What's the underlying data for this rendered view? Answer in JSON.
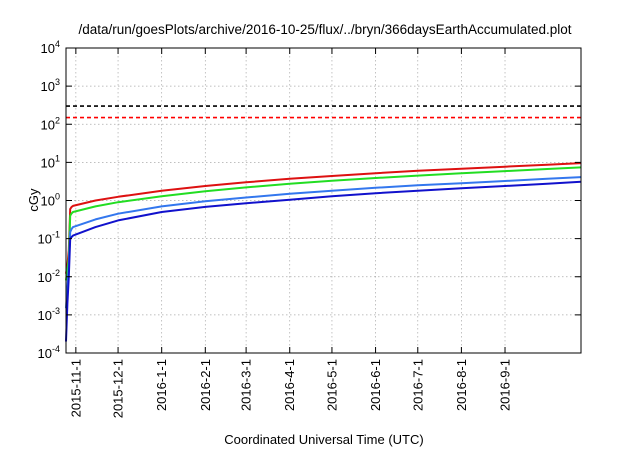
{
  "chart_data": {
    "type": "line",
    "title": "/data/run/goesPlots/archive/2016-10-25/flux/../bryn/366daysEarthAccumulated.plot",
    "xlabel": "Coordinated Universal Time (UTC)",
    "ylabel": "cGy",
    "yscale": "log",
    "ylim": [
      0.0001,
      10000
    ],
    "y_ticks": [
      {
        "value": 0.0001,
        "base": "10",
        "exp": "-4"
      },
      {
        "value": 0.001,
        "base": "10",
        "exp": "-3"
      },
      {
        "value": 0.01,
        "base": "10",
        "exp": "-2"
      },
      {
        "value": 0.1,
        "base": "10",
        "exp": "-1"
      },
      {
        "value": 1,
        "base": "10",
        "exp": "0"
      },
      {
        "value": 10,
        "base": "10",
        "exp": "1"
      },
      {
        "value": 100,
        "base": "10",
        "exp": "2"
      },
      {
        "value": 1000,
        "base": "10",
        "exp": "3"
      },
      {
        "value": 10000,
        "base": "10",
        "exp": "4"
      }
    ],
    "xlim": [
      "2015-10-25",
      "2016-10-25"
    ],
    "x_ticks": [
      "2015-11-1",
      "2015-12-1",
      "2016-1-1",
      "2016-2-1",
      "2016-3-1",
      "2016-4-1",
      "2016-5-1",
      "2016-6-1",
      "2016-7-1",
      "2016-8-1",
      "2016-9-1"
    ],
    "x_tick_dates": [
      "2015-11-01",
      "2015-12-01",
      "2016-01-01",
      "2016-02-01",
      "2016-03-01",
      "2016-04-01",
      "2016-05-01",
      "2016-06-01",
      "2016-07-01",
      "2016-08-01",
      "2016-09-01"
    ],
    "grid": true,
    "reference_lines": [
      {
        "y": 300,
        "color": "#000000",
        "style": "dashed"
      },
      {
        "y": 150,
        "color": "#ff0000",
        "style": "dashed"
      }
    ],
    "series": [
      {
        "color": "#dd1111",
        "x": [
          "2015-10-25",
          "2015-10-26",
          "2015-10-27",
          "2015-10-28",
          "2015-10-29",
          "2015-10-30",
          "2015-11-15",
          "2015-12-01",
          "2016-01-01",
          "2016-02-01",
          "2016-03-01",
          "2016-04-01",
          "2016-05-01",
          "2016-06-01",
          "2016-07-01",
          "2016-08-01",
          "2016-09-01",
          "2016-10-01",
          "2016-10-25"
        ],
        "y": [
          0.012,
          0.02,
          0.05,
          0.6,
          0.68,
          0.72,
          1.0,
          1.25,
          1.8,
          2.4,
          3.0,
          3.7,
          4.4,
          5.2,
          6.0,
          6.8,
          7.7,
          8.7,
          9.6
        ]
      },
      {
        "color": "#22dd22",
        "x": [
          "2015-10-25",
          "2015-10-26",
          "2015-10-27",
          "2015-10-28",
          "2015-10-29",
          "2015-10-30",
          "2015-11-15",
          "2015-12-01",
          "2016-01-01",
          "2016-02-01",
          "2016-03-01",
          "2016-04-01",
          "2016-05-01",
          "2016-06-01",
          "2016-07-01",
          "2016-08-01",
          "2016-09-01",
          "2016-10-01",
          "2016-10-25"
        ],
        "y": [
          0.008,
          0.015,
          0.03,
          0.4,
          0.46,
          0.5,
          0.7,
          0.9,
          1.3,
          1.75,
          2.2,
          2.75,
          3.3,
          3.9,
          4.5,
          5.2,
          5.9,
          6.7,
          7.4
        ]
      },
      {
        "color": "#3377ee",
        "x": [
          "2015-10-25",
          "2015-10-26",
          "2015-10-27",
          "2015-10-28",
          "2015-10-29",
          "2015-10-30",
          "2015-11-15",
          "2015-12-01",
          "2016-01-01",
          "2016-02-01",
          "2016-03-01",
          "2016-04-01",
          "2016-05-01",
          "2016-06-01",
          "2016-07-01",
          "2016-08-01",
          "2016-09-01",
          "2016-10-01",
          "2016-10-25"
        ],
        "y": [
          0.0015,
          0.005,
          0.02,
          0.15,
          0.18,
          0.2,
          0.32,
          0.45,
          0.7,
          0.95,
          1.2,
          1.5,
          1.8,
          2.15,
          2.5,
          2.85,
          3.25,
          3.7,
          4.1
        ]
      },
      {
        "color": "#1111cc",
        "x": [
          "2015-10-25",
          "2015-10-26",
          "2015-10-27",
          "2015-10-28",
          "2015-10-29",
          "2015-10-30",
          "2015-11-15",
          "2015-12-01",
          "2016-01-01",
          "2016-02-01",
          "2016-03-01",
          "2016-04-01",
          "2016-05-01",
          "2016-06-01",
          "2016-07-01",
          "2016-08-01",
          "2016-09-01",
          "2016-10-01",
          "2016-10-25"
        ],
        "y": [
          0.0002,
          0.002,
          0.01,
          0.1,
          0.11,
          0.12,
          0.2,
          0.3,
          0.5,
          0.68,
          0.85,
          1.05,
          1.3,
          1.55,
          1.8,
          2.1,
          2.4,
          2.75,
          3.1
        ]
      }
    ]
  }
}
